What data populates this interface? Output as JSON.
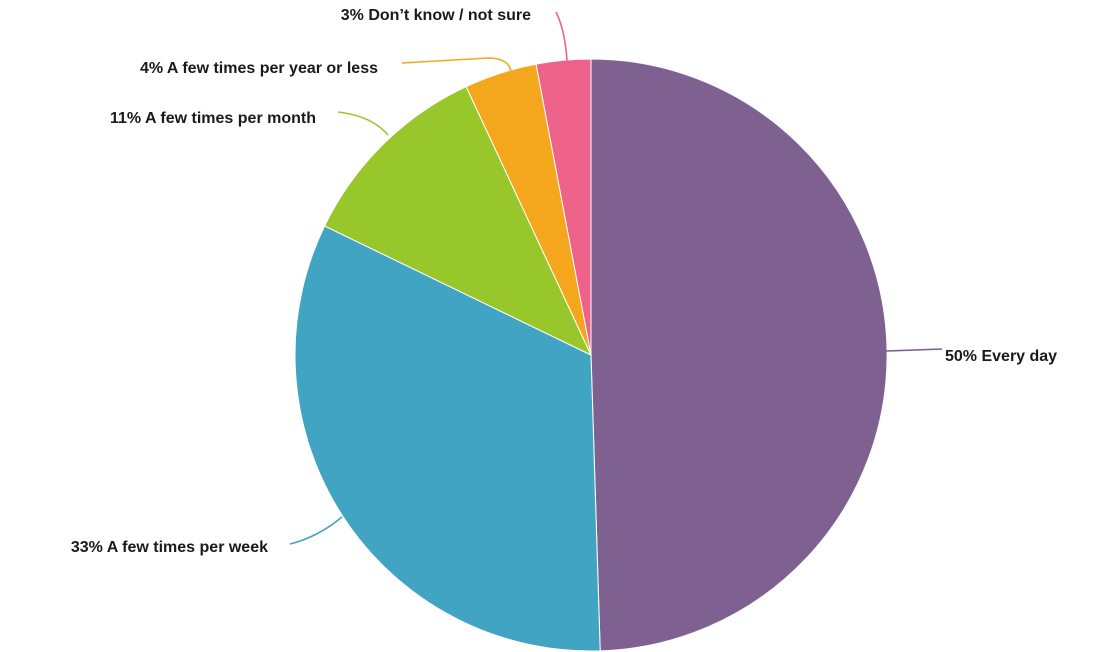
{
  "chart_data": {
    "type": "pie",
    "title": "",
    "slices": [
      {
        "label": "50% Every day",
        "value": 50,
        "color": "#7e6190"
      },
      {
        "label": "33% A few times per week",
        "value": 33,
        "color": "#40a4c2"
      },
      {
        "label": "11% A few times per month",
        "value": 11,
        "color": "#97c72a"
      },
      {
        "label": "4% A few times per year or less",
        "value": 4,
        "color": "#f4a71c"
      },
      {
        "label": "3% Don’t know / not sure",
        "value": 3,
        "color": "#ee6289"
      }
    ]
  }
}
